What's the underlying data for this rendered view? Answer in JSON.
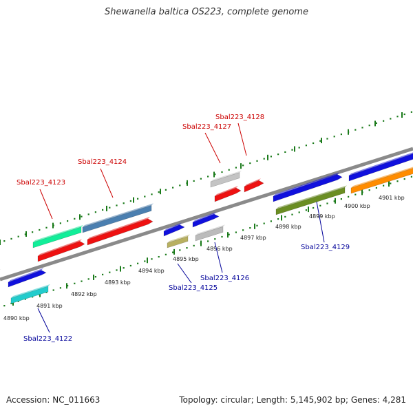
{
  "title": "Shewanella baltica OS223, complete genome",
  "footer": {
    "accession": "Accession: NC_011663",
    "info": "Topology: circular; Length: 5,145,902 bp; Genes: 4,281"
  },
  "colors": {
    "backbone": "#8a8a8a",
    "ruler_ticks": "#1a7a1a",
    "label_forward": "#cc0000",
    "label_reverse": "#000099"
  },
  "scale_labels": [
    "4890 kbp",
    "4891 kbp",
    "4892 kbp",
    "4893 kbp",
    "4894 kbp",
    "4895 kbp",
    "4896 kbp",
    "4897 kbp",
    "4898 kbp",
    "4899 kbp",
    "4900 kbp",
    "4901 kbp"
  ],
  "gene_labels": [
    {
      "name": "Sbal223_4122",
      "strand": "reverse"
    },
    {
      "name": "Sbal223_4123",
      "strand": "forward"
    },
    {
      "name": "Sbal223_4124",
      "strand": "forward"
    },
    {
      "name": "Sbal223_4125",
      "strand": "reverse"
    },
    {
      "name": "Sbal223_4126",
      "strand": "reverse"
    },
    {
      "name": "Sbal223_4127",
      "strand": "forward"
    },
    {
      "name": "Sbal223_4128",
      "strand": "forward"
    },
    {
      "name": "Sbal223_4129",
      "strand": "reverse"
    }
  ],
  "features": [
    {
      "id": "f-red-left",
      "color": "#ee1111"
    },
    {
      "id": "f-blue-a",
      "color": "#1010dd"
    },
    {
      "id": "f-cyan",
      "color": "#22cccc"
    },
    {
      "id": "f-mint",
      "color": "#11ee99"
    },
    {
      "id": "f-red-a",
      "color": "#ee1111"
    },
    {
      "id": "f-steel",
      "color": "#4a7fb0"
    },
    {
      "id": "f-red-b",
      "color": "#ee1111"
    },
    {
      "id": "f-blue-b",
      "color": "#1010dd"
    },
    {
      "id": "f-khaki",
      "color": "#b8b060"
    },
    {
      "id": "f-blue-c",
      "color": "#1010dd"
    },
    {
      "id": "f-gray-a",
      "color": "#bbbbbb"
    },
    {
      "id": "f-gray-b",
      "color": "#c4c4c4"
    },
    {
      "id": "f-red-c",
      "color": "#ee1111"
    },
    {
      "id": "f-red-d",
      "color": "#ee1111"
    },
    {
      "id": "f-blue-d",
      "color": "#1010dd"
    },
    {
      "id": "f-olive",
      "color": "#6b8e23"
    },
    {
      "id": "f-blue-e",
      "color": "#1010dd"
    },
    {
      "id": "f-orange",
      "color": "#ff8c00"
    }
  ]
}
